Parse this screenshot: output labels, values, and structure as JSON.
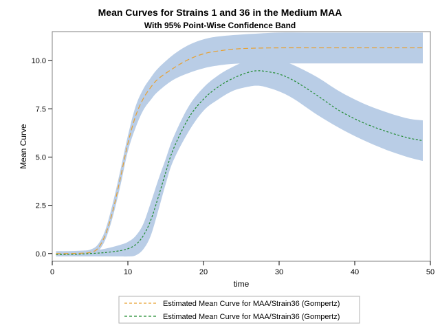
{
  "chart_data": {
    "type": "line",
    "title": "Mean Curves for Strains 1 and 36 in the Medium MAA",
    "subtitle": "With 95% Point-Wise Confidence Band",
    "xlabel": "time",
    "ylabel": "Mean Curve",
    "xlim": [
      0,
      50
    ],
    "ylim": [
      -0.4,
      11.5
    ],
    "xticks": [
      0,
      10,
      20,
      30,
      40,
      50
    ],
    "xtick_labels": [
      "0",
      "10",
      "20",
      "30",
      "40",
      "50"
    ],
    "yticks": [
      0,
      2.5,
      5,
      7.5,
      10
    ],
    "ytick_labels": [
      "0.0",
      "2.5",
      "5.0",
      "7.5",
      "10.0"
    ],
    "legend_position": "bottom",
    "band_color": "#b9cde6",
    "series": [
      {
        "name": "Estimated Mean Curve for MAA/Strain36 (Gompertz)",
        "color": "#e8a030",
        "style": "dashed",
        "x": [
          0.5,
          2,
          4,
          5,
          6,
          7,
          8,
          9,
          10,
          11,
          12,
          13,
          14,
          16,
          18,
          20,
          22,
          25,
          30,
          35,
          40,
          45,
          49
        ],
        "y": [
          0.0,
          0.0,
          0.02,
          0.06,
          0.25,
          0.95,
          2.2,
          3.9,
          5.7,
          7.1,
          8.0,
          8.6,
          9.05,
          9.6,
          10.05,
          10.35,
          10.5,
          10.62,
          10.66,
          10.66,
          10.66,
          10.66,
          10.66
        ],
        "lower": [
          -0.12,
          -0.12,
          -0.1,
          -0.05,
          0.1,
          0.7,
          1.9,
          3.5,
          5.3,
          6.5,
          7.4,
          7.95,
          8.4,
          9.0,
          9.35,
          9.6,
          9.75,
          9.85,
          9.85,
          9.85,
          9.85,
          9.85,
          9.85
        ],
        "upper": [
          0.12,
          0.12,
          0.15,
          0.2,
          0.45,
          1.2,
          2.6,
          4.3,
          6.1,
          7.6,
          8.5,
          9.1,
          9.6,
          10.3,
          10.8,
          11.1,
          11.25,
          11.35,
          11.45,
          11.45,
          11.45,
          11.45,
          11.45
        ]
      },
      {
        "name": "Estimated Mean Curve for MAA/Strain36 (Gompertz)",
        "color": "#1f8a2e",
        "style": "dashed",
        "x": [
          0.5,
          3,
          5,
          7,
          9,
          10,
          11,
          12,
          13,
          14,
          15,
          16,
          18,
          20,
          22,
          24,
          26,
          27,
          28,
          30,
          32,
          35,
          38,
          41,
          44,
          47,
          49
        ],
        "y": [
          -0.05,
          -0.04,
          0.0,
          0.05,
          0.15,
          0.25,
          0.45,
          0.9,
          1.7,
          2.9,
          4.2,
          5.4,
          7.0,
          8.0,
          8.65,
          9.1,
          9.4,
          9.47,
          9.45,
          9.3,
          8.95,
          8.2,
          7.4,
          6.8,
          6.35,
          6.0,
          5.85
        ],
        "lower": [
          -0.15,
          -0.15,
          -0.15,
          -0.15,
          -0.15,
          -0.15,
          -0.1,
          0.2,
          0.9,
          2.2,
          3.6,
          4.8,
          6.3,
          7.4,
          8.0,
          8.45,
          8.65,
          8.7,
          8.65,
          8.4,
          8.0,
          7.2,
          6.5,
          5.9,
          5.4,
          5.0,
          4.8
        ],
        "upper": [
          0.12,
          0.12,
          0.15,
          0.25,
          0.45,
          0.6,
          0.9,
          1.5,
          2.6,
          3.8,
          4.9,
          6.0,
          7.6,
          8.6,
          9.25,
          9.7,
          10.05,
          10.15,
          10.15,
          10.05,
          9.75,
          9.15,
          8.4,
          7.8,
          7.35,
          7.0,
          6.9
        ]
      }
    ]
  }
}
